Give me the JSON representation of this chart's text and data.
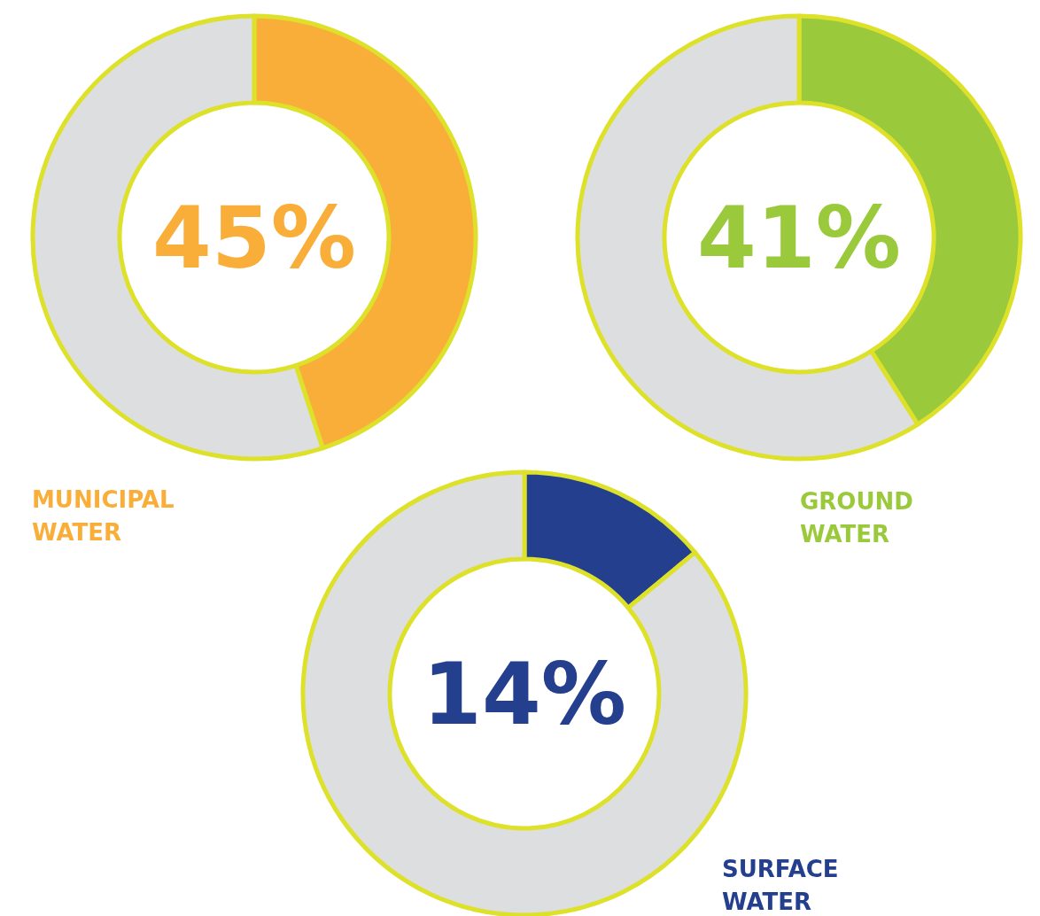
{
  "chart_data": [
    {
      "type": "donut",
      "title": "MUNICIPAL WATER",
      "categories": [
        null,
        null
      ],
      "values": [
        45,
        55
      ],
      "colors": [
        "#f9ae3a",
        "#dcdee0"
      ],
      "annotations": [
        "45%"
      ]
    },
    {
      "type": "donut",
      "title": "GROUND WATER",
      "categories": [
        null,
        null
      ],
      "values": [
        41,
        59
      ],
      "colors": [
        "#9aca3c",
        "#dcdee0"
      ],
      "annotations": [
        "41%"
      ]
    },
    {
      "type": "donut",
      "title": "SURFACE WATER",
      "categories": [
        null,
        null
      ],
      "values": [
        14,
        86
      ],
      "colors": [
        "#253f8f",
        "#dcdee0"
      ],
      "annotations": [
        "14%"
      ]
    }
  ]
}
